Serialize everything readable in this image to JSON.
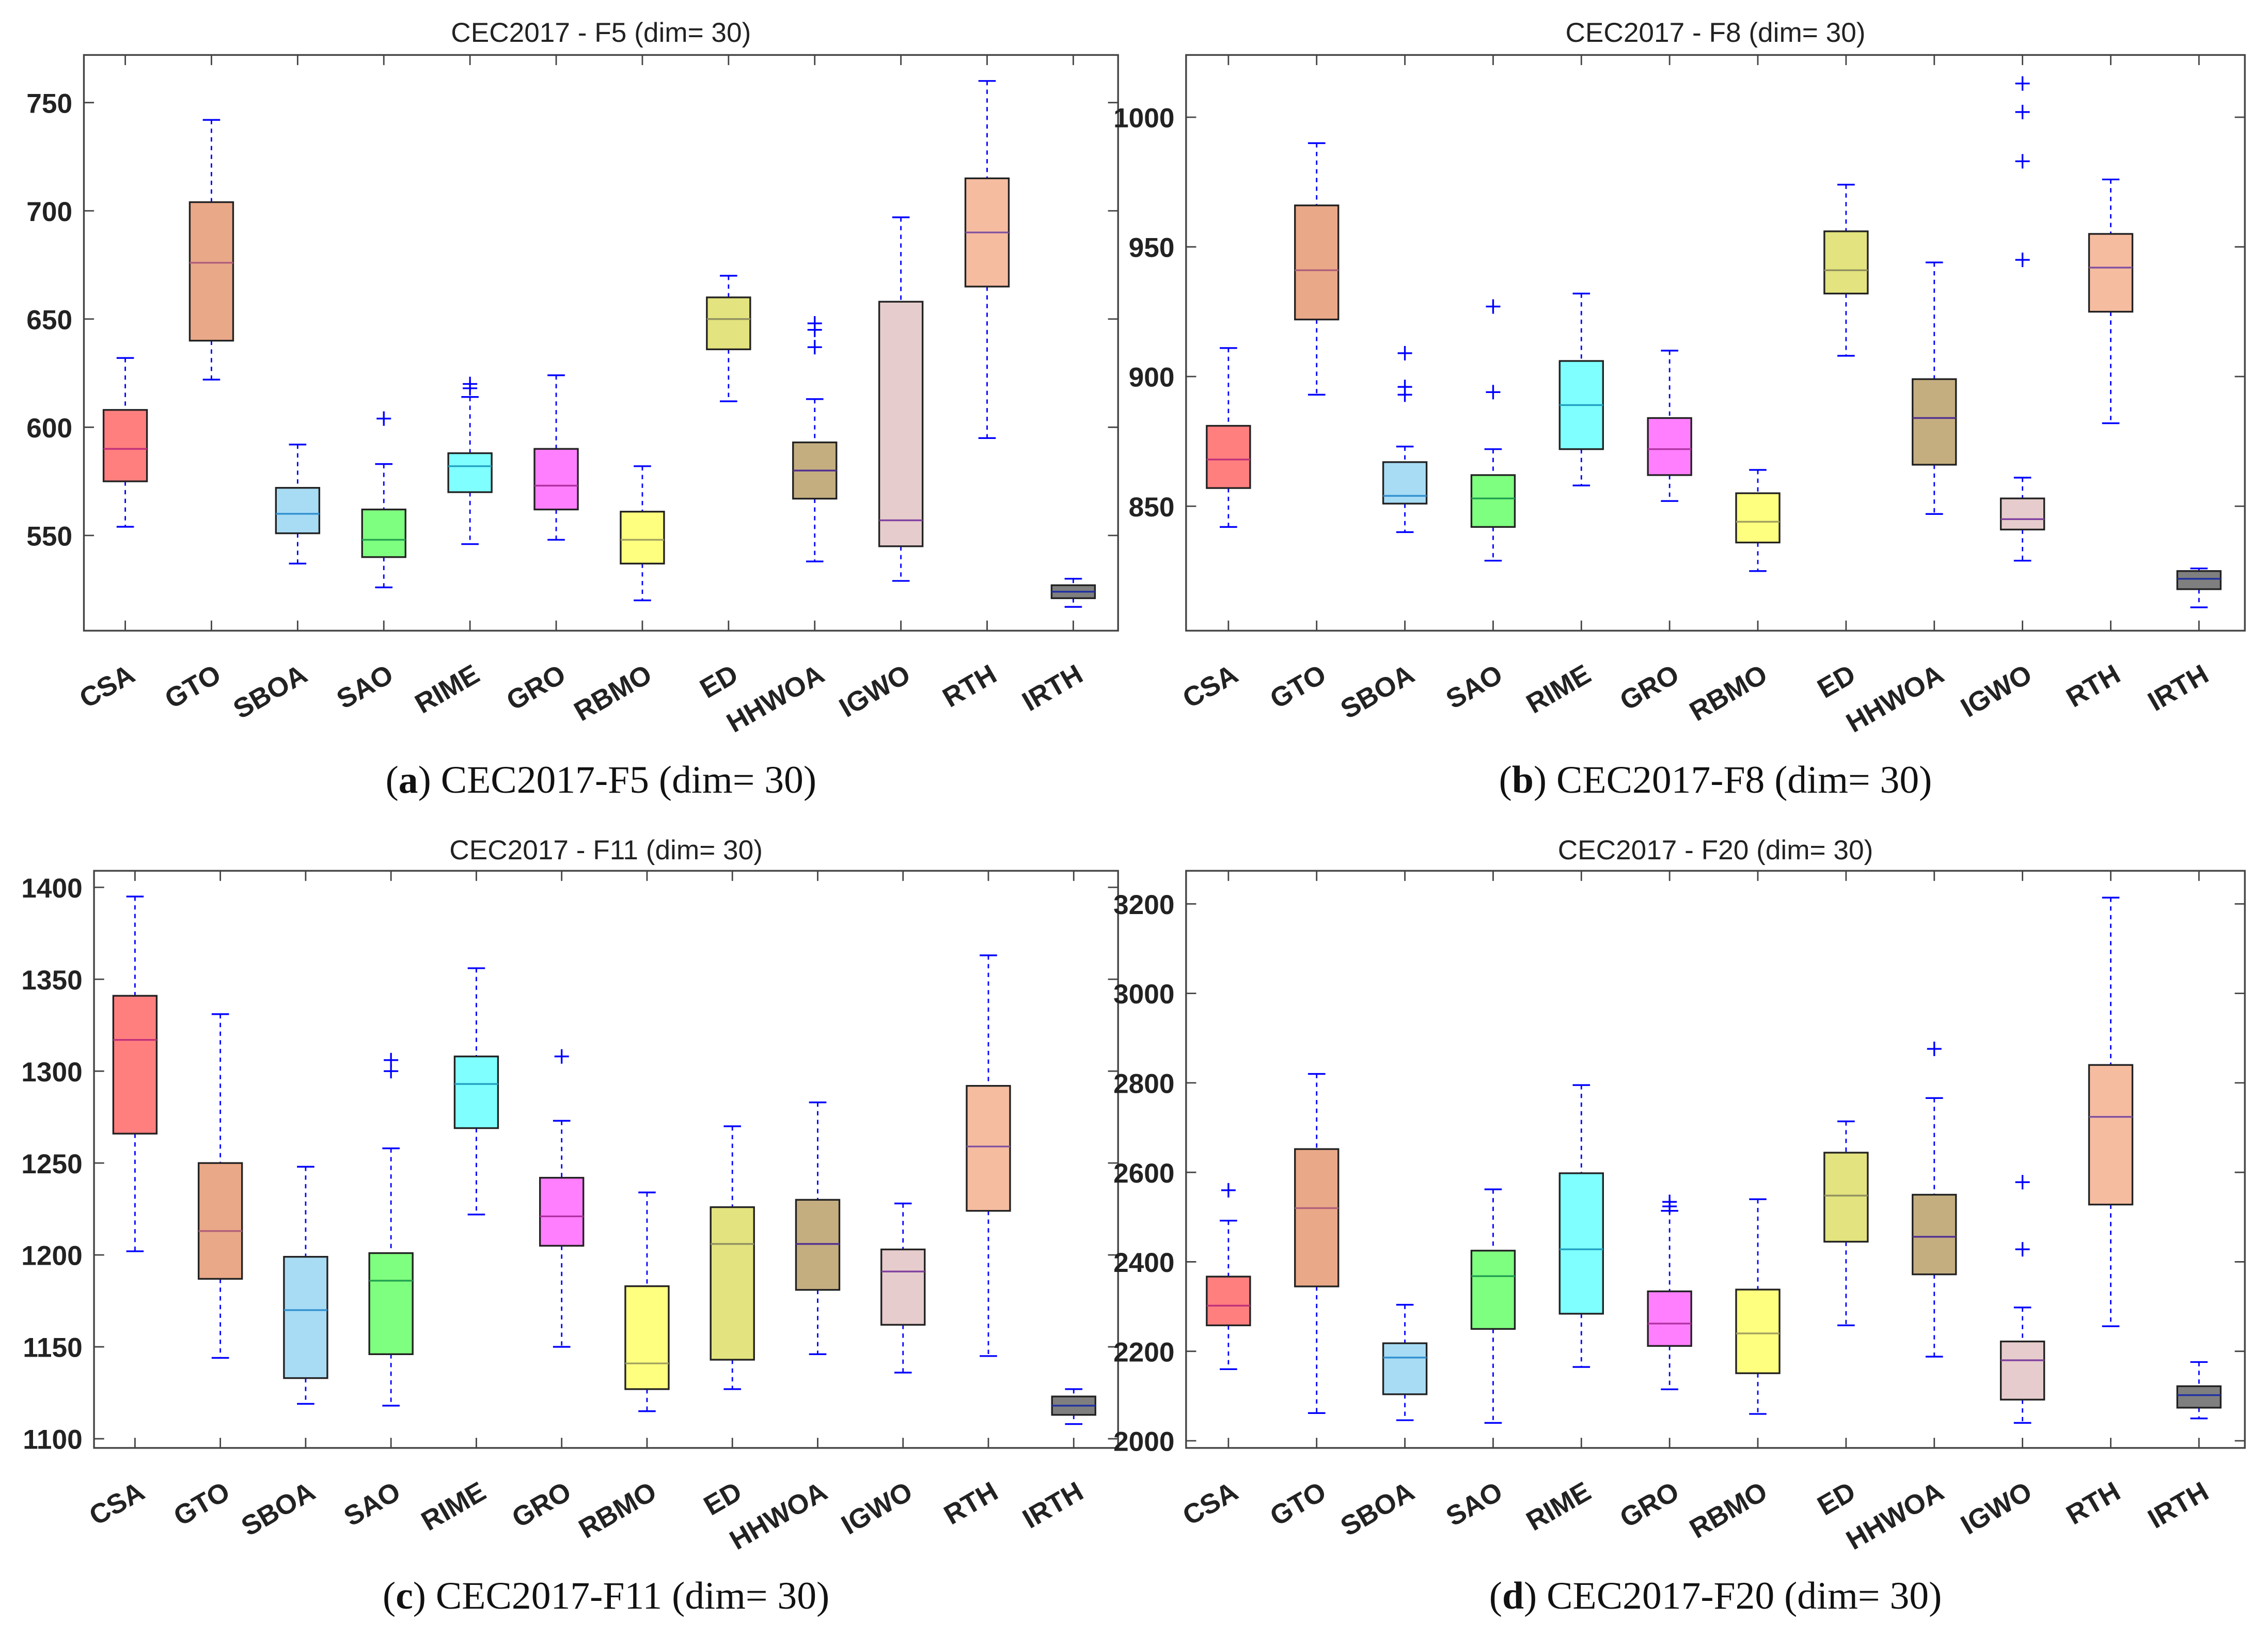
{
  "categories": [
    "CSA",
    "GTO",
    "SBOA",
    "SAO",
    "RIME",
    "GRO",
    "RBMO",
    "ED",
    "HHWOA",
    "IGWO",
    "RTH",
    "IRTH"
  ],
  "box_colors": [
    "#ff7f7f",
    "#e9a888",
    "#a8dcf4",
    "#7fff7f",
    "#7fffff",
    "#ff7fff",
    "#ffff7f",
    "#e3e37f",
    "#c4ae80",
    "#e6cccc",
    "#f5bca0",
    "#7f7f7f"
  ],
  "median_colors": [
    "#c0307a",
    "#b0607a",
    "#3090d0",
    "#20a050",
    "#20a0c0",
    "#b030a0",
    "#a0a060",
    "#909060",
    "#503090",
    "#8040a0",
    "#8050a0",
    "#2030a0"
  ],
  "whisker_color": "#0000ff",
  "chart_data": [
    {
      "type": "box",
      "title": "CEC2017 - F5 (dim= 30)",
      "caption_letter": "a",
      "caption": "CEC2017-F5 (dim= 30)",
      "ylim": [
        506,
        772
      ],
      "yticks": [
        550,
        600,
        650,
        700,
        750
      ],
      "boxes": [
        {
          "lo": 554,
          "q1": 575,
          "med": 590,
          "q3": 608,
          "hi": 632,
          "out": []
        },
        {
          "lo": 622,
          "q1": 640,
          "med": 676,
          "q3": 704,
          "hi": 742,
          "out": []
        },
        {
          "lo": 537,
          "q1": 551,
          "med": 560,
          "q3": 572,
          "hi": 592,
          "out": []
        },
        {
          "lo": 526,
          "q1": 540,
          "med": 548,
          "q3": 562,
          "hi": 583,
          "out": [
            604
          ]
        },
        {
          "lo": 546,
          "q1": 570,
          "med": 582,
          "q3": 588,
          "hi": 614,
          "out": [
            618,
            620
          ]
        },
        {
          "lo": 548,
          "q1": 562,
          "med": 573,
          "q3": 590,
          "hi": 624,
          "out": []
        },
        {
          "lo": 520,
          "q1": 537,
          "med": 548,
          "q3": 561,
          "hi": 582,
          "out": []
        },
        {
          "lo": 612,
          "q1": 636,
          "med": 650,
          "q3": 660,
          "hi": 670,
          "out": []
        },
        {
          "lo": 538,
          "q1": 567,
          "med": 580,
          "q3": 593,
          "hi": 613,
          "out": [
            637,
            645,
            648
          ]
        },
        {
          "lo": 529,
          "q1": 545,
          "med": 557,
          "q3": 658,
          "hi": 697,
          "out": []
        },
        {
          "lo": 595,
          "q1": 665,
          "med": 690,
          "q3": 715,
          "hi": 760,
          "out": []
        },
        {
          "lo": 517,
          "q1": 521,
          "med": 524,
          "q3": 527,
          "hi": 530,
          "out": []
        }
      ]
    },
    {
      "type": "box",
      "title": "CEC2017 - F8 (dim= 30)",
      "caption_letter": "b",
      "caption": "CEC2017-F8 (dim= 30)",
      "ylim": [
        802,
        1024
      ],
      "yticks": [
        850,
        900,
        950,
        1000
      ],
      "boxes": [
        {
          "lo": 842,
          "q1": 857,
          "med": 868,
          "q3": 881,
          "hi": 911,
          "out": []
        },
        {
          "lo": 893,
          "q1": 922,
          "med": 941,
          "q3": 966,
          "hi": 990,
          "out": []
        },
        {
          "lo": 840,
          "q1": 851,
          "med": 854,
          "q3": 867,
          "hi": 873,
          "out": [
            893,
            896,
            909
          ]
        },
        {
          "lo": 829,
          "q1": 842,
          "med": 853,
          "q3": 862,
          "hi": 872,
          "out": [
            894,
            927
          ]
        },
        {
          "lo": 858,
          "q1": 872,
          "med": 889,
          "q3": 906,
          "hi": 932,
          "out": []
        },
        {
          "lo": 852,
          "q1": 862,
          "med": 872,
          "q3": 884,
          "hi": 910,
          "out": []
        },
        {
          "lo": 825,
          "q1": 836,
          "med": 844,
          "q3": 855,
          "hi": 864,
          "out": []
        },
        {
          "lo": 908,
          "q1": 932,
          "med": 941,
          "q3": 956,
          "hi": 974,
          "out": []
        },
        {
          "lo": 847,
          "q1": 866,
          "med": 884,
          "q3": 899,
          "hi": 944,
          "out": []
        },
        {
          "lo": 829,
          "q1": 841,
          "med": 845,
          "q3": 853,
          "hi": 861,
          "out": [
            945,
            983,
            1002,
            1013
          ]
        },
        {
          "lo": 882,
          "q1": 925,
          "med": 942,
          "q3": 955,
          "hi": 976,
          "out": []
        },
        {
          "lo": 811,
          "q1": 818,
          "med": 822,
          "q3": 825,
          "hi": 826,
          "out": []
        }
      ]
    },
    {
      "type": "box",
      "title": "CEC2017 - F11 (dim= 30)",
      "caption_letter": "c",
      "caption": "CEC2017-F11 (dim= 30)",
      "ylim": [
        1095,
        1409
      ],
      "yticks": [
        1100,
        1150,
        1200,
        1250,
        1300,
        1350,
        1400
      ],
      "boxes": [
        {
          "lo": 1202,
          "q1": 1266,
          "med": 1317,
          "q3": 1341,
          "hi": 1395,
          "out": []
        },
        {
          "lo": 1144,
          "q1": 1187,
          "med": 1213,
          "q3": 1250,
          "hi": 1331,
          "out": []
        },
        {
          "lo": 1119,
          "q1": 1133,
          "med": 1170,
          "q3": 1199,
          "hi": 1248,
          "out": []
        },
        {
          "lo": 1118,
          "q1": 1146,
          "med": 1186,
          "q3": 1201,
          "hi": 1258,
          "out": [
            1300,
            1306
          ]
        },
        {
          "lo": 1222,
          "q1": 1269,
          "med": 1293,
          "q3": 1308,
          "hi": 1356,
          "out": []
        },
        {
          "lo": 1150,
          "q1": 1205,
          "med": 1221,
          "q3": 1242,
          "hi": 1273,
          "out": [
            1308
          ]
        },
        {
          "lo": 1115,
          "q1": 1127,
          "med": 1141,
          "q3": 1183,
          "hi": 1234,
          "out": []
        },
        {
          "lo": 1127,
          "q1": 1143,
          "med": 1206,
          "q3": 1226,
          "hi": 1270,
          "out": []
        },
        {
          "lo": 1146,
          "q1": 1181,
          "med": 1206,
          "q3": 1230,
          "hi": 1283,
          "out": []
        },
        {
          "lo": 1136,
          "q1": 1162,
          "med": 1191,
          "q3": 1203,
          "hi": 1228,
          "out": []
        },
        {
          "lo": 1145,
          "q1": 1224,
          "med": 1259,
          "q3": 1292,
          "hi": 1363,
          "out": []
        },
        {
          "lo": 1108,
          "q1": 1113,
          "med": 1118,
          "q3": 1123,
          "hi": 1127,
          "out": []
        }
      ]
    },
    {
      "type": "box",
      "title": "CEC2017 - F20 (dim= 30)",
      "caption_letter": "d",
      "caption": "CEC2017-F20 (dim= 30)",
      "ylim": [
        1984,
        3274
      ],
      "yticks": [
        2000,
        2200,
        2400,
        2600,
        2800,
        3000,
        3200
      ],
      "boxes": [
        {
          "lo": 2160,
          "q1": 2258,
          "med": 2302,
          "q3": 2367,
          "hi": 2492,
          "out": [
            2560
          ]
        },
        {
          "lo": 2062,
          "q1": 2345,
          "med": 2520,
          "q3": 2652,
          "hi": 2820,
          "out": []
        },
        {
          "lo": 2046,
          "q1": 2104,
          "med": 2186,
          "q3": 2218,
          "hi": 2304,
          "out": []
        },
        {
          "lo": 2040,
          "q1": 2250,
          "med": 2368,
          "q3": 2425,
          "hi": 2562,
          "out": []
        },
        {
          "lo": 2165,
          "q1": 2284,
          "med": 2428,
          "q3": 2598,
          "hi": 2795,
          "out": []
        },
        {
          "lo": 2115,
          "q1": 2212,
          "med": 2262,
          "q3": 2334,
          "hi": 2514,
          "out": [
            2524,
            2534
          ]
        },
        {
          "lo": 2060,
          "q1": 2151,
          "med": 2240,
          "q3": 2338,
          "hi": 2540,
          "out": []
        },
        {
          "lo": 2258,
          "q1": 2445,
          "med": 2548,
          "q3": 2644,
          "hi": 2714,
          "out": []
        },
        {
          "lo": 2188,
          "q1": 2372,
          "med": 2456,
          "q3": 2550,
          "hi": 2766,
          "out": [
            2876
          ]
        },
        {
          "lo": 2040,
          "q1": 2092,
          "med": 2180,
          "q3": 2222,
          "hi": 2298,
          "out": [
            2428,
            2578
          ]
        },
        {
          "lo": 2256,
          "q1": 2528,
          "med": 2724,
          "q3": 2840,
          "hi": 3214,
          "out": []
        },
        {
          "lo": 2050,
          "q1": 2074,
          "med": 2102,
          "q3": 2122,
          "hi": 2176,
          "out": []
        }
      ]
    }
  ]
}
